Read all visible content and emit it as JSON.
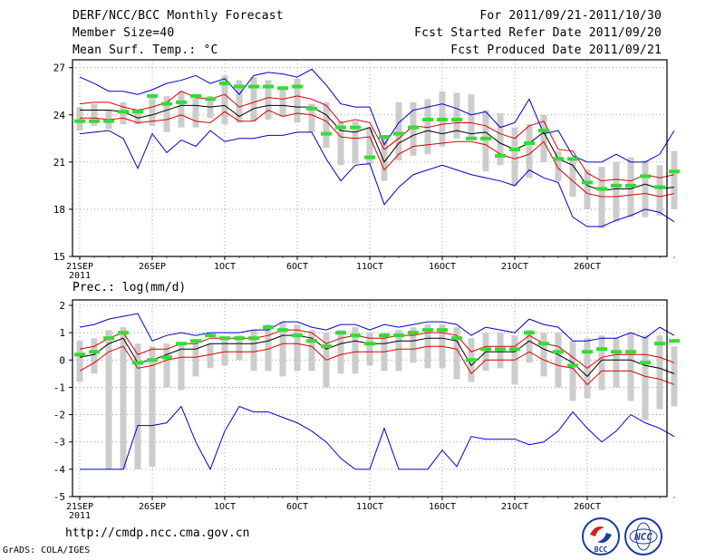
{
  "header": {
    "title": "DERF/NCC/BCC Monthly Forecast",
    "member_size": "Member Size=40",
    "variable": "Mean Surf. Temp.: °C",
    "period": "For 2011/09/21-2011/10/30",
    "started": "Fcst Started Refer Date 2011/09/20",
    "produced": "Fcst Produced Date 2011/09/21"
  },
  "colors": {
    "minmax": "#0000cc",
    "spread": "#dd0000",
    "mean": "#000000",
    "box": "#cccccc",
    "median": "#33dd33",
    "grid": "#888888"
  },
  "chart_data": [
    {
      "type": "line",
      "name": "temperature",
      "title": "Mean Surf. Temp.: °C",
      "ylim": [
        15,
        27.5
      ],
      "yticks": [
        15,
        18,
        21,
        24,
        27
      ],
      "ytick_labels": [
        "15",
        "18",
        "21",
        "24",
        "27"
      ],
      "xlim": [
        0.5,
        41.5
      ],
      "xticks": [
        1,
        6,
        11,
        16,
        21,
        26,
        31,
        36
      ],
      "xtick_labels": [
        "21SEP",
        "26SEP",
        "1OCT",
        "6OCT",
        "11OCT",
        "16OCT",
        "21OCT",
        "26OCT"
      ],
      "year_label": "2011",
      "series": [
        {
          "name": "max",
          "values": [
            26.4,
            26.0,
            25.5,
            25.5,
            25.3,
            25.6,
            26.0,
            26.2,
            26.5,
            26.0,
            26.3,
            25.3,
            26.5,
            26.7,
            26.6,
            26.4,
            26.9,
            25.9,
            24.7,
            24.5,
            24.5,
            22.1,
            23.5,
            24.3,
            24.5,
            24.7,
            24.4,
            24.0,
            24.2,
            23.2,
            23.5,
            25.0,
            22.8,
            23.0,
            21.4,
            21.0,
            21.0,
            21.5,
            21.0,
            21.0,
            21.5,
            23.0
          ]
        },
        {
          "name": "spread_upper",
          "values": [
            24.7,
            24.8,
            24.8,
            24.5,
            24.3,
            24.5,
            24.8,
            25.5,
            25.1,
            25.0,
            25.3,
            24.5,
            24.8,
            25.1,
            25.0,
            25.2,
            25.0,
            24.6,
            23.5,
            23.7,
            23.5,
            21.8,
            22.5,
            23.3,
            23.2,
            23.4,
            23.5,
            23.5,
            23.3,
            22.8,
            22.5,
            23.3,
            23.6,
            21.8,
            21.7,
            20.3,
            19.8,
            19.9,
            19.8,
            20.2,
            20.0,
            20.2
          ]
        },
        {
          "name": "mean",
          "values": [
            24.3,
            24.3,
            24.3,
            24.2,
            23.8,
            24.0,
            24.3,
            24.6,
            24.6,
            24.5,
            24.6,
            23.9,
            24.4,
            24.6,
            24.6,
            24.5,
            24.5,
            24.0,
            23.0,
            22.9,
            23.2,
            21.0,
            22.2,
            22.7,
            23.0,
            22.8,
            23.0,
            22.8,
            22.9,
            22.2,
            21.8,
            22.2,
            22.9,
            21.2,
            20.8,
            19.5,
            19.2,
            19.3,
            19.3,
            19.6,
            19.3,
            19.4
          ]
        },
        {
          "name": "spread_lower",
          "values": [
            23.8,
            23.8,
            23.7,
            23.8,
            23.5,
            23.6,
            23.7,
            24.0,
            23.6,
            23.5,
            24.2,
            23.6,
            23.6,
            24.3,
            23.9,
            24.1,
            24.0,
            23.6,
            22.6,
            22.5,
            22.6,
            20.5,
            21.5,
            22.0,
            22.1,
            22.2,
            22.3,
            22.3,
            22.1,
            21.5,
            21.2,
            21.5,
            22.3,
            20.6,
            19.8,
            19.0,
            18.8,
            18.8,
            18.9,
            19.0,
            18.8,
            19.0
          ]
        },
        {
          "name": "min",
          "values": [
            22.8,
            22.9,
            23.0,
            22.5,
            20.6,
            22.8,
            21.6,
            22.4,
            22.0,
            23.0,
            22.3,
            22.5,
            22.5,
            22.7,
            22.7,
            22.9,
            22.9,
            21.2,
            19.8,
            20.8,
            20.9,
            18.3,
            19.4,
            20.2,
            20.5,
            20.8,
            20.5,
            20.2,
            20.0,
            19.8,
            19.5,
            20.5,
            20.0,
            19.7,
            17.5,
            16.9,
            16.9,
            17.3,
            17.6,
            18.0,
            17.8,
            17.2
          ]
        },
        {
          "name": "box_high",
          "values": [
            24.5,
            24.7,
            24.3,
            24.8,
            24.3,
            25.3,
            25.2,
            25.5,
            25.1,
            25.2,
            26.5,
            26.2,
            26.4,
            26.2,
            25.8,
            26.3,
            24.7,
            24.8,
            23.6,
            23.6,
            23.2,
            22.5,
            24.8,
            24.8,
            25.0,
            25.5,
            25.4,
            25.3,
            24.3,
            24.1,
            23.2,
            23.4,
            24.0,
            21.7,
            21.2,
            20.5,
            20.7,
            21.0,
            21.3,
            21.1,
            20.8,
            21.7
          ]
        },
        {
          "name": "box_low",
          "values": [
            23.0,
            23.3,
            23.1,
            23.4,
            23.4,
            23.3,
            22.9,
            23.2,
            23.2,
            23.8,
            23.4,
            23.5,
            23.6,
            23.7,
            23.9,
            23.5,
            22.9,
            21.9,
            20.8,
            20.9,
            20.9,
            19.8,
            21.1,
            21.4,
            21.5,
            22.0,
            22.5,
            22.6,
            20.4,
            20.8,
            19.5,
            20.0,
            21.0,
            19.8,
            18.8,
            18.0,
            16.8,
            17.2,
            17.5,
            17.5,
            17.6,
            18.0
          ]
        },
        {
          "name": "median",
          "values": [
            23.6,
            23.6,
            23.6,
            24.2,
            24.2,
            25.2,
            24.7,
            24.8,
            25.2,
            25.0,
            26.0,
            25.8,
            25.8,
            25.8,
            25.7,
            25.8,
            24.4,
            22.8,
            23.2,
            23.2,
            21.3,
            22.6,
            22.8,
            23.2,
            23.7,
            23.7,
            23.7,
            22.5,
            22.5,
            21.4,
            21.8,
            22.2,
            23.0,
            21.2,
            21.2,
            19.7,
            19.3,
            19.5,
            19.5,
            20.1,
            19.4,
            20.4
          ]
        }
      ]
    },
    {
      "type": "line",
      "name": "precipitation",
      "title": "Prec.: log(mm/d)",
      "ylim": [
        -5,
        2.2
      ],
      "yticks": [
        -5,
        -4,
        -3,
        -2,
        -1,
        0,
        1,
        2
      ],
      "ytick_labels": [
        "-5",
        "-4",
        "-3",
        "-2",
        "-1",
        "0",
        "1",
        "2"
      ],
      "xlim": [
        0.5,
        41.5
      ],
      "xticks": [
        1,
        6,
        11,
        16,
        21,
        26,
        31,
        36
      ],
      "xtick_labels": [
        "21SEP",
        "26SEP",
        "1OCT",
        "6OCT",
        "11OCT",
        "16OCT",
        "21OCT",
        "26OCT"
      ],
      "year_label": "2011",
      "series": [
        {
          "name": "max",
          "values": [
            1.2,
            1.3,
            1.5,
            1.6,
            1.7,
            0.7,
            0.9,
            1.0,
            0.9,
            1.0,
            1.0,
            1.0,
            1.1,
            1.1,
            1.4,
            1.4,
            1.2,
            1.1,
            1.3,
            1.3,
            1.1,
            1.3,
            1.2,
            1.3,
            1.4,
            1.4,
            1.3,
            0.9,
            1.2,
            1.1,
            1.0,
            1.5,
            1.3,
            1.2,
            0.7,
            0.7,
            0.8,
            0.8,
            1.0,
            0.8,
            1.2,
            0.9
          ]
        },
        {
          "name": "spread_upper",
          "values": [
            0.4,
            0.5,
            0.8,
            1.0,
            0.2,
            0.4,
            0.4,
            0.6,
            0.6,
            0.8,
            0.8,
            0.8,
            0.8,
            0.9,
            1.1,
            1.1,
            1.0,
            0.6,
            0.8,
            0.9,
            0.8,
            0.8,
            0.9,
            0.9,
            1.0,
            1.0,
            0.9,
            0.3,
            0.5,
            0.5,
            0.5,
            0.9,
            0.6,
            0.5,
            0.1,
            -0.3,
            0.1,
            0.2,
            0.2,
            0.2,
            0.1,
            -0.1
          ]
        },
        {
          "name": "mean",
          "values": [
            0.1,
            0.2,
            0.6,
            0.8,
            -0.1,
            0.0,
            0.2,
            0.4,
            0.4,
            0.6,
            0.6,
            0.6,
            0.6,
            0.7,
            0.9,
            0.9,
            0.8,
            0.4,
            0.6,
            0.7,
            0.6,
            0.6,
            0.7,
            0.7,
            0.8,
            0.8,
            0.7,
            -0.2,
            0.3,
            0.3,
            0.3,
            0.7,
            0.4,
            0.2,
            -0.1,
            -0.6,
            0.0,
            0.0,
            0.0,
            -0.2,
            -0.3,
            -0.5
          ]
        },
        {
          "name": "spread_lower",
          "values": [
            -0.4,
            -0.1,
            0.3,
            0.5,
            -0.3,
            -0.2,
            0.0,
            0.1,
            0.1,
            0.2,
            0.3,
            0.3,
            0.3,
            0.4,
            0.6,
            0.6,
            0.5,
            0.0,
            0.2,
            0.3,
            0.3,
            0.3,
            0.4,
            0.4,
            0.5,
            0.5,
            0.4,
            -0.5,
            0.0,
            0.0,
            0.0,
            0.3,
            0.0,
            -0.2,
            -0.3,
            -0.9,
            -0.4,
            -0.4,
            -0.4,
            -0.6,
            -0.7,
            -0.9
          ]
        },
        {
          "name": "min",
          "values": [
            -4,
            -4,
            -4,
            -4,
            -2.4,
            -2.4,
            -2.3,
            -1.7,
            -3.0,
            -4,
            -2.6,
            -1.7,
            -1.9,
            -1.9,
            -2.1,
            -2.3,
            -2.6,
            -3.0,
            -3.6,
            -4,
            -4,
            -2.5,
            -4,
            -4,
            -4,
            -3.3,
            -3.9,
            -2.8,
            -2.9,
            -2.9,
            -2.9,
            -3.1,
            -3.0,
            -2.6,
            -1.9,
            -2.5,
            -3.0,
            -2.6,
            -2.0,
            -2.3,
            -2.5,
            -2.8
          ]
        },
        {
          "name": "box_high",
          "values": [
            0.7,
            0.8,
            1.1,
            1.2,
            0.6,
            0.5,
            0.6,
            0.6,
            0.6,
            0.6,
            0.8,
            0.9,
            1.1,
            1.3,
            1.4,
            1.3,
            1.1,
            1.0,
            1.1,
            1.2,
            1.0,
            1.0,
            1.1,
            1.2,
            1.3,
            1.3,
            1.2,
            0.8,
            1.0,
            1.0,
            0.9,
            1.1,
            1.0,
            1.0,
            0.7,
            0.8,
            0.9,
            0.8,
            1.0,
            0.9,
            0.9,
            0.5
          ]
        },
        {
          "name": "box_low",
          "values": [
            -0.8,
            -0.5,
            -4,
            -4,
            -4,
            -3.9,
            -1.0,
            -1.1,
            -0.6,
            -0.3,
            -0.2,
            0.0,
            -0.4,
            -0.4,
            -0.6,
            -0.4,
            -0.4,
            -1.0,
            -0.5,
            -0.5,
            -0.2,
            -0.4,
            -0.4,
            -0.1,
            -0.3,
            -0.3,
            -0.7,
            -0.8,
            -0.4,
            -0.3,
            -0.9,
            -0.1,
            -0.6,
            -1.0,
            -1.5,
            -1.4,
            -1.1,
            -1.0,
            -1.5,
            -2.2,
            -1.8,
            -1.7
          ]
        },
        {
          "name": "median",
          "values": [
            0.2,
            0.3,
            0.8,
            1.0,
            -0.1,
            0.0,
            0.1,
            0.6,
            0.7,
            0.9,
            0.8,
            0.8,
            0.8,
            1.2,
            1.1,
            0.9,
            0.7,
            0.5,
            1.0,
            0.9,
            0.6,
            0.9,
            0.9,
            1.0,
            1.1,
            1.1,
            0.8,
            0.0,
            0.4,
            0.4,
            0.4,
            1.0,
            0.6,
            0.3,
            -0.2,
            0.3,
            0.4,
            0.3,
            0.3,
            -0.1,
            0.6,
            0.7
          ]
        }
      ]
    }
  ],
  "footer": {
    "url": "http://cmdp.ncc.cma.gov.cn",
    "grads": "GrADS: COLA/IGES",
    "logo_bcc_text": "BCC",
    "logo_ncc_text": "NCC"
  }
}
